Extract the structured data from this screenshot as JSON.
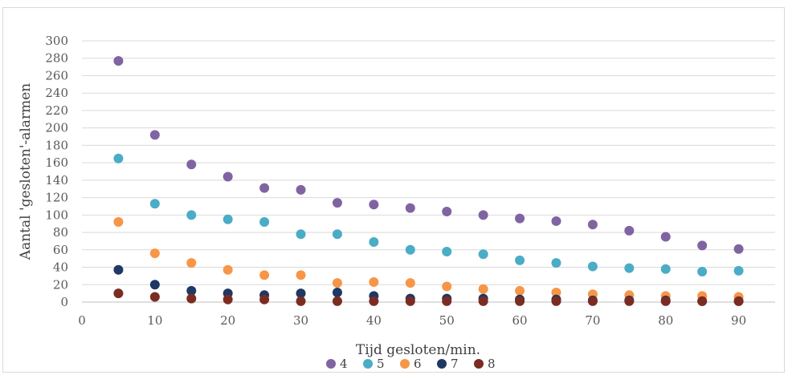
{
  "chart_data": {
    "type": "scatter",
    "title": "",
    "xlabel": "Tijd gesloten/min.",
    "ylabel": "Aantal 'gesloten'-alarmen",
    "xlim": [
      0,
      95
    ],
    "ylim": [
      0,
      300
    ],
    "x_ticks": [
      "0",
      "10",
      "20",
      "30",
      "40",
      "50",
      "60",
      "70",
      "80",
      "90"
    ],
    "y_ticks": [
      "0",
      "20",
      "40",
      "60",
      "80",
      "100",
      "120",
      "140",
      "160",
      "180",
      "200",
      "220",
      "240",
      "260",
      "280",
      "300"
    ],
    "grid": "horizontal",
    "legend_position": "bottom",
    "x": [
      5,
      10,
      15,
      20,
      25,
      30,
      35,
      40,
      45,
      50,
      55,
      60,
      65,
      70,
      75,
      80,
      85,
      90
    ],
    "series": [
      {
        "name": "4",
        "color": "#8064a2",
        "values": [
          277,
          192,
          158,
          144,
          131,
          129,
          114,
          112,
          108,
          104,
          100,
          96,
          93,
          89,
          82,
          75,
          65,
          61
        ]
      },
      {
        "name": "5",
        "color": "#4bacc6",
        "values": [
          165,
          113,
          100,
          95,
          92,
          78,
          78,
          69,
          60,
          58,
          55,
          48,
          45,
          41,
          39,
          38,
          35,
          36
        ]
      },
      {
        "name": "6",
        "color": "#f79646",
        "values": [
          92,
          56,
          45,
          37,
          31,
          31,
          22,
          23,
          22,
          18,
          15,
          13,
          11,
          9,
          8,
          7,
          7,
          6
        ]
      },
      {
        "name": "7",
        "color": "#1f3864",
        "values": [
          37,
          20,
          13,
          10,
          8,
          10,
          11,
          7,
          4,
          4,
          4,
          3,
          3,
          2,
          2,
          2,
          1,
          1
        ]
      },
      {
        "name": "8",
        "color": "#7b2c22",
        "values": [
          10,
          6,
          4,
          3,
          3,
          1,
          1,
          1,
          1,
          1,
          1,
          1,
          1,
          1,
          1,
          1,
          1,
          1
        ]
      }
    ]
  }
}
